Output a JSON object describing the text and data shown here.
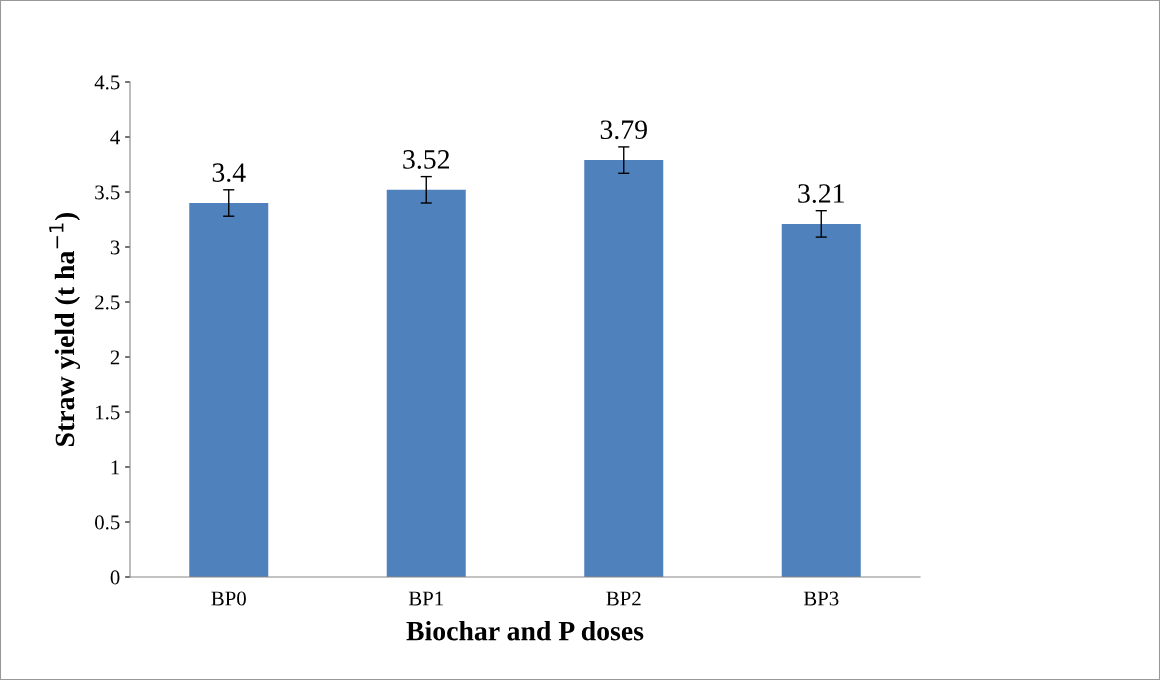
{
  "chart_data": {
    "type": "bar",
    "xlabel": "Biochar and P doses",
    "ylabel": "Straw yield (t ha$^{−1}$)",
    "categories": [
      "BP0",
      "BP1",
      "BP2",
      "BP3"
    ],
    "values": [
      3.4,
      3.52,
      3.79,
      3.21
    ],
    "errors": [
      0.12,
      0.12,
      0.12,
      0.12
    ],
    "color": "#4f81bd",
    "data_labels": true,
    "ylim": [
      0,
      4.5
    ],
    "yticks": [
      0,
      0.5,
      1,
      1.5,
      2,
      2.5,
      3,
      3.5,
      4,
      4.5
    ],
    "grid": false,
    "legend": false
  }
}
